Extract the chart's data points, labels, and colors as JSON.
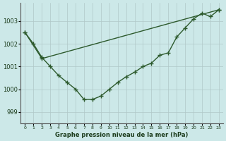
{
  "xlabel": "Graphe pression niveau de la mer (hPa)",
  "bg_color": "#cce8e8",
  "plot_bg_color": "#cce8e8",
  "grid_color": "#b0c8c8",
  "line_color": "#2d5a2d",
  "marker": "+",
  "markersize": 4,
  "linewidth": 1.0,
  "ylim": [
    998.5,
    1003.8
  ],
  "yticks": [
    999,
    1000,
    1001,
    1002,
    1003
  ],
  "xticks": [
    0,
    1,
    2,
    3,
    4,
    5,
    6,
    7,
    8,
    9,
    10,
    11,
    12,
    13,
    14,
    15,
    16,
    17,
    18,
    19,
    20,
    21,
    22,
    23
  ],
  "line1_x": [
    0,
    1,
    2,
    3,
    4,
    5,
    6,
    7,
    8,
    9,
    10,
    11,
    12,
    13,
    14,
    15,
    16,
    17,
    18,
    19,
    20,
    21,
    22,
    23
  ],
  "line1_y": [
    1002.5,
    1002.0,
    1001.4,
    1001.0,
    1000.6,
    1000.3,
    1000.0,
    999.55,
    999.55,
    999.7,
    1000.0,
    1000.3,
    1000.55,
    1000.75,
    1001.0,
    1001.15,
    1001.5,
    1001.6,
    1002.3,
    1002.7,
    1003.1,
    1003.35,
    1003.2,
    1003.5
  ],
  "line2_x": [
    0,
    2,
    23
  ],
  "line2_y": [
    1002.5,
    1001.35,
    1003.5
  ]
}
